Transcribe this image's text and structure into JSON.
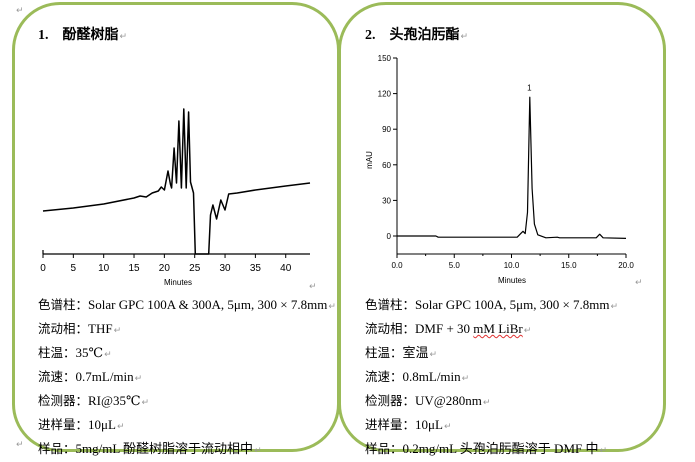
{
  "panels": [
    {
      "number": "1.",
      "title": "酚醛树脂",
      "info": [
        {
          "key": "色谱柱：",
          "value": "Solar GPC 100A & 300A, 5μm, 300 × 7.8mm"
        },
        {
          "key": "流动相：",
          "value": "THF"
        },
        {
          "key": "柱温：",
          "value": "35℃"
        },
        {
          "key": "流速：",
          "value": "0.7mL/min"
        },
        {
          "key": "检测器：",
          "value": "RI@35℃"
        },
        {
          "key": "进样量：",
          "value": "10μL"
        },
        {
          "key": "样品：",
          "value": "5mg/mL 酚醛树脂溶于流动相中"
        }
      ]
    },
    {
      "number": "2.",
      "title": "头孢泊肟酯",
      "info": [
        {
          "key": "色谱柱：",
          "value": "Solar GPC 100A, 5μm, 300  × 7.8mm"
        },
        {
          "key": "流动相：",
          "value": "DMF + 30 mM LiBr"
        },
        {
          "key": "柱温：",
          "value": "室温"
        },
        {
          "key": "流速：",
          "value": "0.8mL/min"
        },
        {
          "key": "检测器：",
          "value": "UV@280nm"
        },
        {
          "key": "进样量：",
          "value": "10μL"
        },
        {
          "key": "样品：",
          "value": "0.2mg/mL 头孢泊肟酯溶于 DMF 中"
        }
      ]
    }
  ],
  "chart_data": [
    {
      "type": "line",
      "xlabel": "Minutes",
      "ylabel": "",
      "xlim": [
        0,
        44
      ],
      "xticks": [
        "0",
        "5",
        "10",
        "15",
        "20",
        "25",
        "30",
        "35",
        "40"
      ],
      "y_axis_shown": false,
      "grid": false,
      "line_color": "#000000",
      "series": [
        {
          "x": [
            0,
            5,
            10,
            15,
            16,
            17,
            18,
            19,
            19.5,
            20,
            20.6,
            21.0,
            21.2,
            21.6,
            22.0,
            22.4,
            22.8,
            23.2,
            23.6,
            24.0,
            24.3,
            24.8,
            25.1,
            27.3,
            27.6,
            28.0,
            28.6,
            29.3,
            30.0,
            30.6,
            32,
            35,
            40,
            44
          ],
          "y": [
            43,
            46,
            50,
            56,
            58,
            57,
            61,
            63,
            67,
            64,
            83,
            70,
            66,
            106,
            71,
            133,
            66,
            145,
            66,
            142,
            72,
            61,
            0,
            0,
            39,
            49,
            35,
            54,
            44,
            60,
            61,
            64,
            68,
            71
          ]
        }
      ]
    },
    {
      "type": "line",
      "xlabel": "Minutes",
      "ylabel": "mAU",
      "xlim": [
        0,
        20
      ],
      "ylim": [
        -15,
        150
      ],
      "xticks": [
        "0.0",
        "5.0",
        "10.0",
        "15.0",
        "20.0"
      ],
      "yticks": [
        "0",
        "30",
        "60",
        "90",
        "120",
        "150"
      ],
      "grid": false,
      "line_color": "#000000",
      "annotations": [
        {
          "text": "1",
          "x": 11.6,
          "y": 120
        }
      ],
      "series": [
        {
          "x": [
            0,
            3.4,
            3.6,
            10.5,
            10.8,
            11.0,
            11.2,
            11.4,
            11.6,
            11.8,
            12.0,
            12.3,
            13.0,
            14.0,
            14.2,
            17.4,
            17.7,
            18.0,
            20.0
          ],
          "y": [
            0,
            0,
            -1,
            -1,
            2,
            4,
            2,
            20,
            117,
            40,
            10,
            1,
            -1.5,
            -1,
            -1.5,
            -1.5,
            1.5,
            -1.5,
            -2
          ]
        }
      ]
    }
  ]
}
